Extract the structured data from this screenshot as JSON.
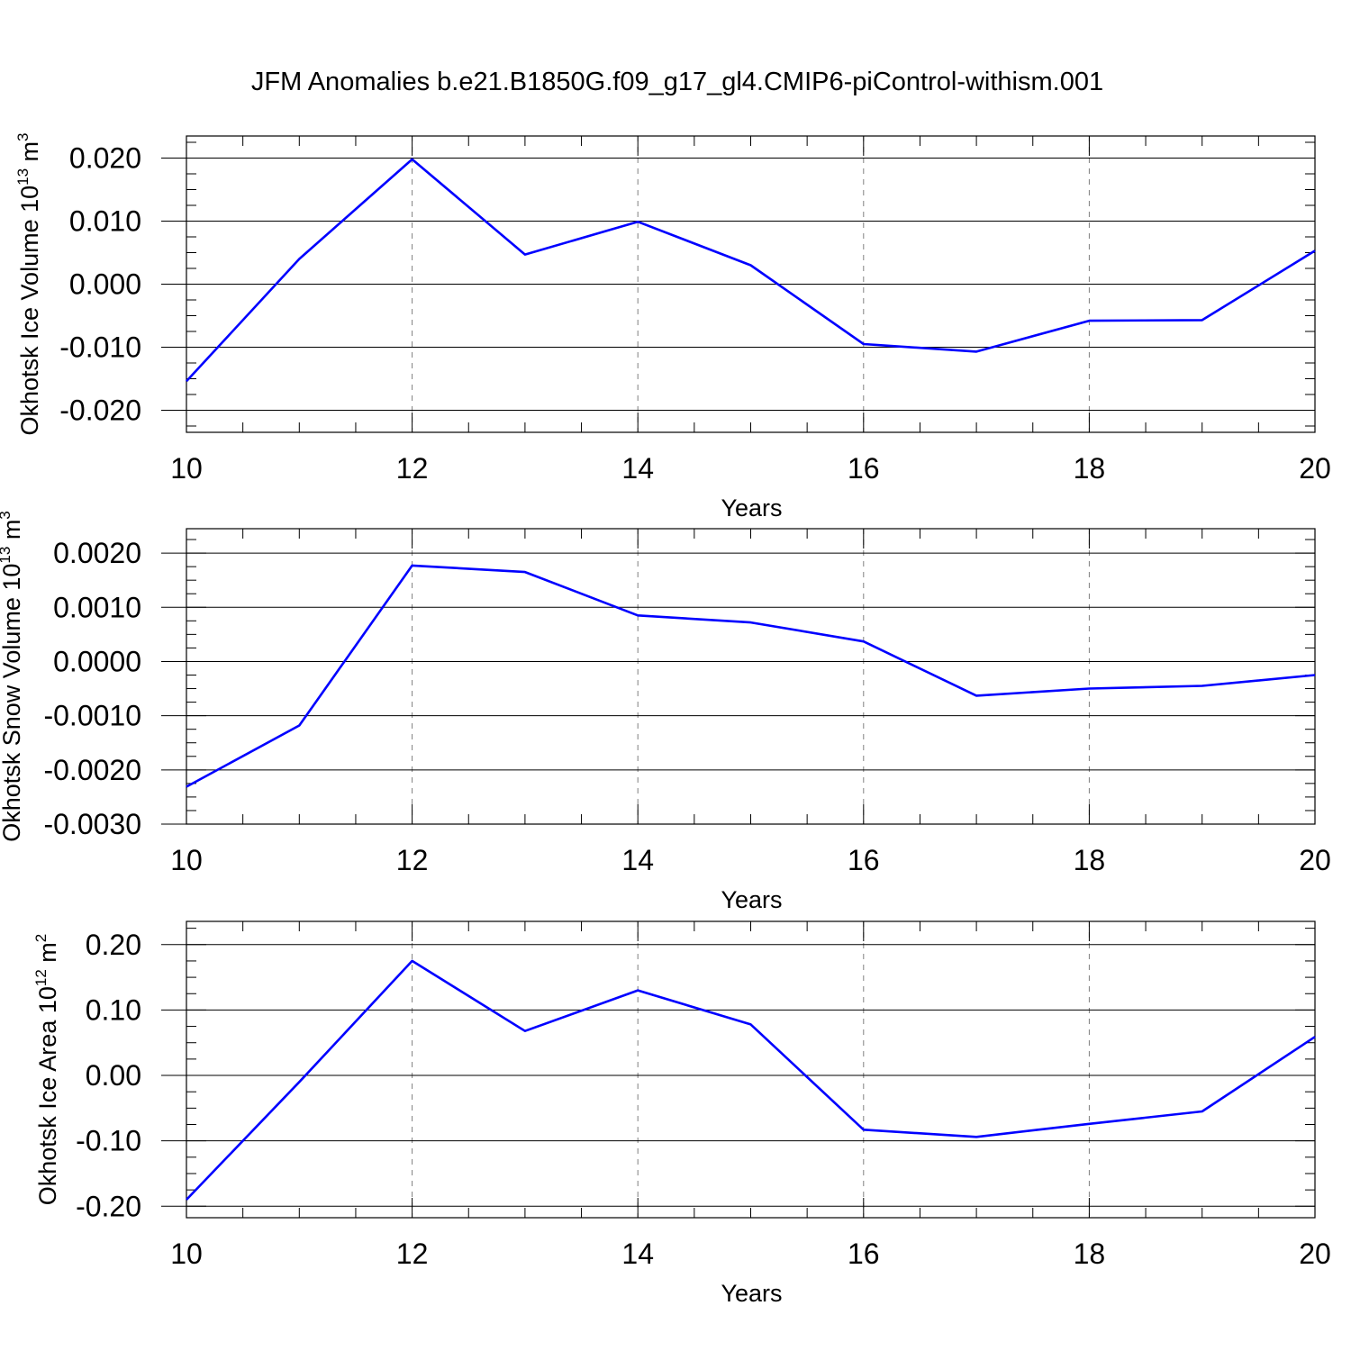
{
  "title": "JFM Anomalies b.e21.B1850G.f09_g17_gl4.CMIP6-piControl-withism.001",
  "colors": {
    "line": "#0000ff",
    "grid": "#808080",
    "axis": "#000000"
  },
  "chart_data": [
    {
      "type": "line",
      "name": "ice-volume",
      "ylabel": {
        "text": "Okhotsk Ice Volume 10",
        "exp": "13",
        "unit": " m",
        "unit_exp": "3"
      },
      "xlabel": "Years",
      "x": [
        10,
        11,
        12,
        13,
        14,
        15,
        16,
        17,
        18,
        19,
        20
      ],
      "values": [
        -0.0154,
        0.004,
        0.0198,
        0.0047,
        0.0099,
        0.003,
        -0.0095,
        -0.0107,
        -0.0058,
        -0.0057,
        0.0053
      ],
      "xlim": [
        10,
        20
      ],
      "ylim": [
        -0.0235,
        0.0235
      ],
      "xticks": [
        10,
        12,
        14,
        16,
        18,
        20
      ],
      "yticks": [
        -0.02,
        -0.01,
        0.0,
        0.01,
        0.02
      ],
      "ytick_labels": [
        "-0.020",
        "-0.010",
        "0.000",
        "0.010",
        "0.020"
      ],
      "xminor_step": 0.5,
      "yminor_step": 0.0025,
      "grid_x": true
    },
    {
      "type": "line",
      "name": "snow-volume",
      "ylabel": {
        "text": "Okhotsk Snow Volume 10",
        "exp": "13",
        "unit": " m",
        "unit_exp": "3"
      },
      "xlabel": "Years",
      "x": [
        10,
        11,
        12,
        13,
        14,
        15,
        16,
        17,
        18,
        19,
        20
      ],
      "values": [
        -0.00231,
        -0.00118,
        0.00177,
        0.00165,
        0.00085,
        0.00072,
        0.00037,
        -0.00063,
        -0.0005,
        -0.00045,
        -0.00025
      ],
      "xlim": [
        10,
        20
      ],
      "ylim": [
        -0.003,
        0.00245
      ],
      "xticks": [
        10,
        12,
        14,
        16,
        18,
        20
      ],
      "yticks": [
        -0.003,
        -0.002,
        -0.001,
        0.0,
        0.001,
        0.002
      ],
      "ytick_labels": [
        "-0.0030",
        "-0.0020",
        "-0.0010",
        "0.0000",
        "0.0010",
        "0.0020"
      ],
      "xminor_step": 0.5,
      "yminor_step": 0.00025,
      "grid_x": true
    },
    {
      "type": "line",
      "name": "ice-area",
      "ylabel": {
        "text": "Okhotsk Ice Area 10",
        "exp": "12",
        "unit": " m",
        "unit_exp": "2"
      },
      "xlabel": "Years",
      "x": [
        10,
        11,
        12,
        13,
        14,
        15,
        16,
        17,
        18,
        19,
        20
      ],
      "values": [
        -0.19,
        -0.01,
        0.175,
        0.068,
        0.13,
        0.078,
        -0.083,
        -0.094,
        -0.074,
        -0.055,
        0.059
      ],
      "xlim": [
        10,
        20
      ],
      "ylim": [
        -0.2175,
        0.2355
      ],
      "xticks": [
        10,
        12,
        14,
        16,
        18,
        20
      ],
      "yticks": [
        -0.2,
        -0.1,
        0.0,
        0.1,
        0.2
      ],
      "ytick_labels": [
        "-0.20",
        "-0.10",
        "0.00",
        "0.10",
        "0.20"
      ],
      "xminor_step": 0.5,
      "yminor_step": 0.025,
      "grid_x": true
    }
  ]
}
